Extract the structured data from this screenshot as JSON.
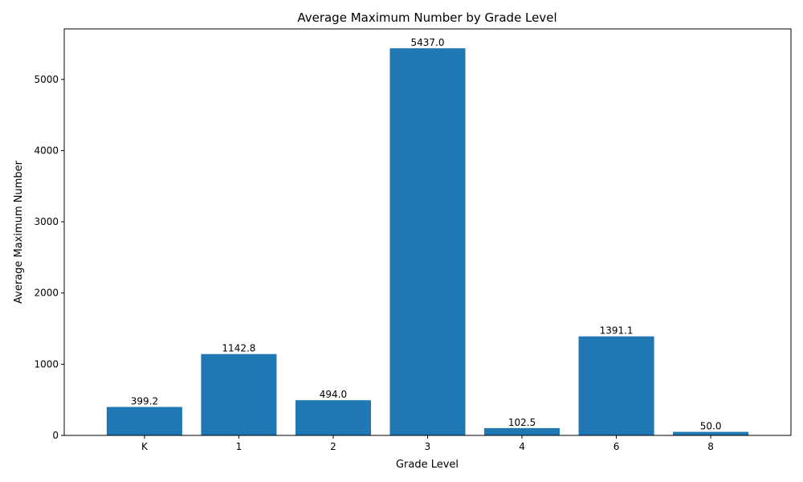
{
  "chart_data": {
    "type": "bar",
    "title": "Average Maximum Number by Grade Level",
    "xlabel": "Grade Level",
    "ylabel": "Average Maximum Number",
    "categories": [
      "K",
      "1",
      "2",
      "3",
      "4",
      "6",
      "8"
    ],
    "values": [
      399.2,
      1142.8,
      494.0,
      5437.0,
      102.5,
      1391.1,
      50.0
    ],
    "value_labels": [
      "399.2",
      "1142.8",
      "494.0",
      "5437.0",
      "102.5",
      "1391.1",
      "50.0"
    ],
    "ylim": [
      0,
      5709
    ],
    "yticks": [
      0,
      1000,
      2000,
      3000,
      4000,
      5000
    ],
    "ytick_labels": [
      "0",
      "1000",
      "2000",
      "3000",
      "4000",
      "5000"
    ],
    "bar_color": "#1f77b4",
    "grid": false,
    "legend": "none"
  }
}
